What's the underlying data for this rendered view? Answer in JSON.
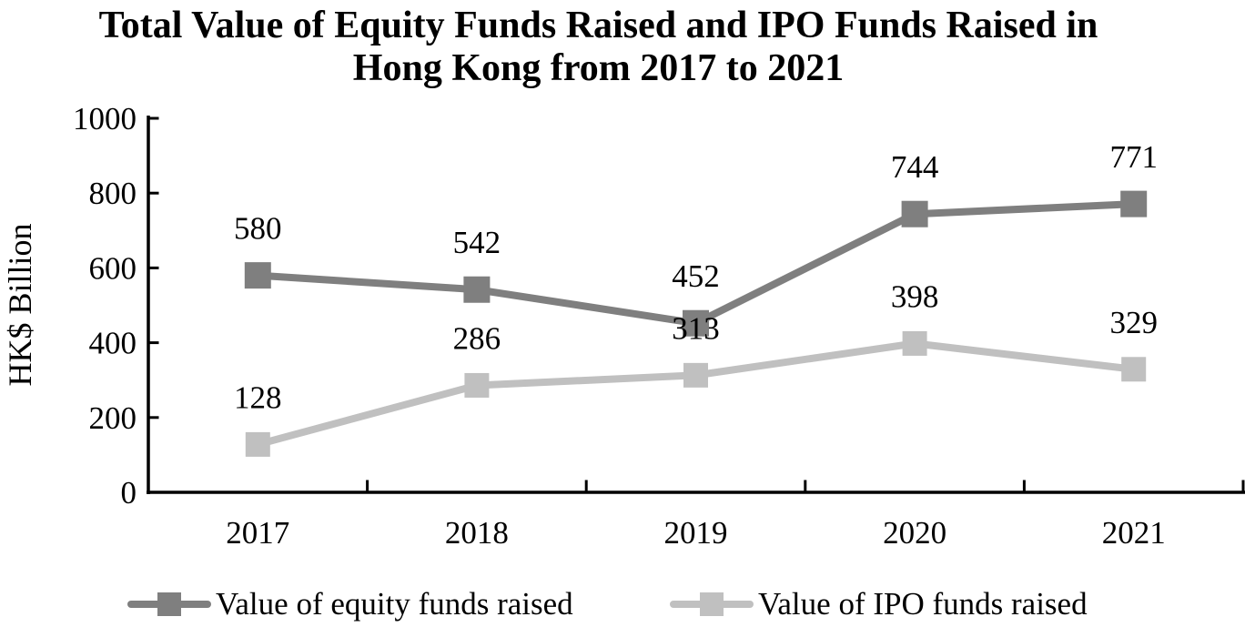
{
  "chart_data": {
    "type": "line",
    "title": "Total Value of Equity Funds Raised and IPO Funds Raised in Hong Kong from 2017 to 2021",
    "title_lines": [
      "Total Value of Equity Funds Raised and IPO Funds Raised in",
      "Hong Kong from 2017 to 2021"
    ],
    "xlabel": "",
    "ylabel": "HK$ Billion",
    "categories": [
      "2017",
      "2018",
      "2019",
      "2020",
      "2021"
    ],
    "series": [
      {
        "name": "Value of equity funds raised",
        "values": [
          580,
          542,
          452,
          744,
          771
        ],
        "color": "#7f7f7f"
      },
      {
        "name": "Value of IPO funds raised",
        "values": [
          128,
          286,
          313,
          398,
          329
        ],
        "color": "#c0c0c0"
      }
    ],
    "ylim": [
      0,
      1000
    ],
    "yticks": [
      0,
      200,
      400,
      600,
      800,
      1000
    ],
    "grid": false,
    "legend_position": "bottom",
    "marker_shape": "square",
    "data_labels": true,
    "axis_color": "#000000",
    "text_color": "#000000"
  }
}
